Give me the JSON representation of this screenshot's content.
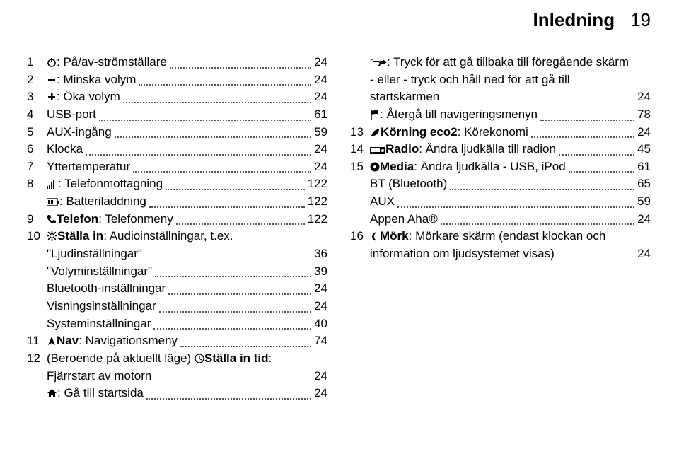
{
  "header": {
    "section": "Inledning",
    "page": "19"
  },
  "col1": [
    {
      "num": "1",
      "icon": "power",
      "text": ": På/av-strömställare",
      "page": "24"
    },
    {
      "num": "2",
      "icon": "minus",
      "text": ": Minska volym",
      "page": "24"
    },
    {
      "num": "3",
      "icon": "plus",
      "text": ": Öka volym",
      "page": "24"
    },
    {
      "num": "4",
      "text": "USB-port",
      "page": "61"
    },
    {
      "num": "5",
      "text": "AUX-ingång",
      "page": "59"
    },
    {
      "num": "6",
      "text": "Klocka",
      "page": "24"
    },
    {
      "num": "7",
      "text": "Yttertemperatur",
      "page": "24"
    },
    {
      "num": "8",
      "icon": "signal",
      "text": ": Telefonmottagning",
      "page": "122"
    },
    {
      "num": "",
      "icon": "battery",
      "text": ": Batteriladdning",
      "page": "122"
    },
    {
      "num": "9",
      "icon": "phone",
      "bold": "Telefon",
      "text": ": Telefonmeny",
      "page": "122"
    },
    {
      "num": "10",
      "icon": "gear",
      "bold": "Ställa in",
      "text": ": Audioinställningar, t.ex. \"Ljudinställningar\"",
      "page": "36"
    },
    {
      "num": "",
      "text": "\"Volyminställningar\"",
      "page": "39"
    },
    {
      "num": "",
      "text": "Bluetooth-inställningar",
      "page": "24"
    },
    {
      "num": "",
      "text": "Visningsinställningar",
      "page": "24"
    },
    {
      "num": "",
      "text": "Systeminställningar",
      "page": "40"
    },
    {
      "num": "11",
      "icon": "navarrow",
      "bold": "Nav",
      "text": ": Navigationsmeny",
      "page": "74"
    },
    {
      "num": "12",
      "text": "(Beroende på aktuellt läge) ",
      "icon_mid": "clock",
      "bold_mid": "Ställa in tid",
      "tail": ": Fjärrstart av motorn",
      "page": "24"
    },
    {
      "num": "",
      "icon": "home",
      "text": ": Gå till startsida",
      "page": "24"
    }
  ],
  "col2": [
    {
      "num": "",
      "icon": "backarrows",
      "text": ": Tryck för att gå tillbaka till föregående skärm - eller - tryck och håll ned för att gå till startskärmen",
      "page": "24"
    },
    {
      "num": "",
      "icon": "flag",
      "text": ": Återgå till navigeringsmenyn",
      "page": "78"
    },
    {
      "num": "13",
      "icon": "eco",
      "bold": "Körning eco2",
      "text": ": Körekonomi",
      "page": "24"
    },
    {
      "num": "14",
      "icon": "radio",
      "bold": "Radio",
      "text": ": Ändra ljudkälla till radion",
      "page": "45"
    },
    {
      "num": "15",
      "icon": "media",
      "bold": "Media",
      "text": ": Ändra ljudkälla - USB, iPod",
      "page": "61"
    },
    {
      "num": "",
      "text": "BT (Bluetooth)",
      "page": "65"
    },
    {
      "num": "",
      "text": "AUX",
      "page": "59"
    },
    {
      "num": "",
      "text": "Appen Aha®",
      "page": "24"
    },
    {
      "num": "16",
      "icon": "moon",
      "bold": "Mörk",
      "text": ": Mörkare skärm (endast klockan och information om ljudsystemet visas)",
      "page": "24"
    }
  ]
}
